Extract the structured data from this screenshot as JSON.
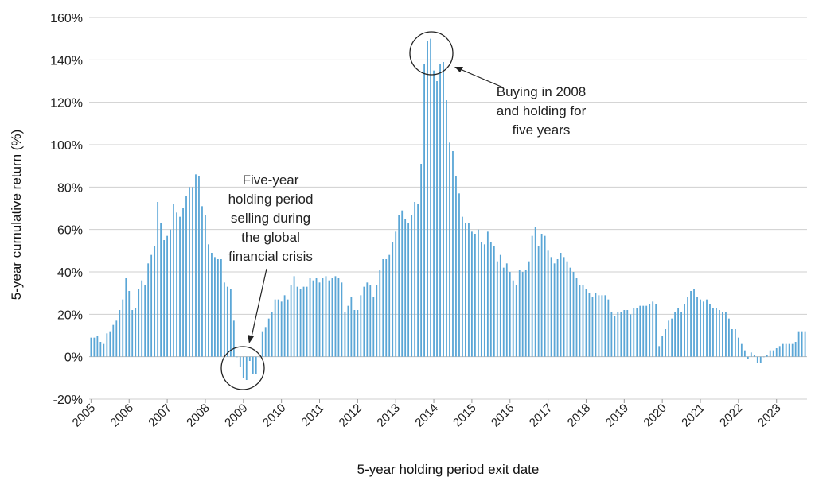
{
  "chart_data": {
    "type": "bar",
    "xlabel": "5-year holding period exit date",
    "ylabel": "5-year cumulative return (%)",
    "ylim": [
      -20,
      160
    ],
    "y_ticks": [
      "160%",
      "140%",
      "120%",
      "100%",
      "80%",
      "60%",
      "40%",
      "20%",
      "0%",
      "-20%"
    ],
    "y_tick_values": [
      160,
      140,
      120,
      100,
      80,
      60,
      40,
      20,
      0,
      -20
    ],
    "x_ticks": [
      "2005",
      "2006",
      "2007",
      "2008",
      "2009",
      "2010",
      "2011",
      "2012",
      "2013",
      "2014",
      "2015",
      "2016",
      "2017",
      "2018",
      "2019",
      "2020",
      "2021",
      "2022",
      "2023"
    ],
    "x_range": [
      2004.95,
      2023.8
    ],
    "grid": true,
    "series": [
      {
        "x": [
          2005.0,
          2005.083,
          2005.167,
          2005.25,
          2005.333,
          2005.417,
          2005.5,
          2005.583,
          2005.667,
          2005.75,
          2005.833,
          2005.917,
          2006.0,
          2006.083,
          2006.167,
          2006.25,
          2006.333,
          2006.417,
          2006.5,
          2006.583,
          2006.667,
          2006.75,
          2006.833,
          2006.917,
          2007.0,
          2007.083,
          2007.167,
          2007.25,
          2007.333,
          2007.417,
          2007.5,
          2007.583,
          2007.667,
          2007.75,
          2007.833,
          2007.917,
          2008.0,
          2008.083,
          2008.167,
          2008.25,
          2008.333,
          2008.417,
          2008.5,
          2008.583,
          2008.667,
          2008.75,
          2008.833,
          2008.917,
          2009.0,
          2009.083,
          2009.167,
          2009.25,
          2009.333,
          2009.417,
          2009.5,
          2009.583,
          2009.667,
          2009.75,
          2009.833,
          2009.917,
          2010.0,
          2010.083,
          2010.167,
          2010.25,
          2010.333,
          2010.417,
          2010.5,
          2010.583,
          2010.667,
          2010.75,
          2010.833,
          2010.917,
          2011.0,
          2011.083,
          2011.167,
          2011.25,
          2011.333,
          2011.417,
          2011.5,
          2011.583,
          2011.667,
          2011.75,
          2011.833,
          2011.917,
          2012.0,
          2012.083,
          2012.167,
          2012.25,
          2012.333,
          2012.417,
          2012.5,
          2012.583,
          2012.667,
          2012.75,
          2012.833,
          2012.917,
          2013.0,
          2013.083,
          2013.167,
          2013.25,
          2013.333,
          2013.417,
          2013.5,
          2013.583,
          2013.667,
          2013.75,
          2013.833,
          2013.917,
          2014.0,
          2014.083,
          2014.167,
          2014.25,
          2014.333,
          2014.417,
          2014.5,
          2014.583,
          2014.667,
          2014.75,
          2014.833,
          2014.917,
          2015.0,
          2015.083,
          2015.167,
          2015.25,
          2015.333,
          2015.417,
          2015.5,
          2015.583,
          2015.667,
          2015.75,
          2015.833,
          2015.917,
          2016.0,
          2016.083,
          2016.167,
          2016.25,
          2016.333,
          2016.417,
          2016.5,
          2016.583,
          2016.667,
          2016.75,
          2016.833,
          2016.917,
          2017.0,
          2017.083,
          2017.167,
          2017.25,
          2017.333,
          2017.417,
          2017.5,
          2017.583,
          2017.667,
          2017.75,
          2017.833,
          2017.917,
          2018.0,
          2018.083,
          2018.167,
          2018.25,
          2018.333,
          2018.417,
          2018.5,
          2018.583,
          2018.667,
          2018.75,
          2018.833,
          2018.917,
          2019.0,
          2019.083,
          2019.167,
          2019.25,
          2019.333,
          2019.417,
          2019.5,
          2019.583,
          2019.667,
          2019.75,
          2019.833,
          2019.917,
          2020.0,
          2020.083,
          2020.167,
          2020.25,
          2020.333,
          2020.417,
          2020.5,
          2020.583,
          2020.667,
          2020.75,
          2020.833,
          2020.917,
          2021.0,
          2021.083,
          2021.167,
          2021.25,
          2021.333,
          2021.417,
          2021.5,
          2021.583,
          2021.667,
          2021.75,
          2021.833,
          2021.917,
          2022.0,
          2022.083,
          2022.167,
          2022.25,
          2022.333,
          2022.417,
          2022.5,
          2022.583,
          2022.667,
          2022.75,
          2022.833,
          2022.917,
          2023.0,
          2023.083,
          2023.167,
          2023.25,
          2023.333,
          2023.417,
          2023.5,
          2023.583,
          2023.667,
          2023.75
        ],
        "values": [
          9,
          9,
          10,
          7,
          6,
          11,
          12,
          15,
          17,
          22,
          27,
          37,
          31,
          22,
          23,
          32,
          36,
          34,
          44,
          48,
          52,
          73,
          63,
          55,
          57,
          60,
          72,
          68,
          66,
          70,
          76,
          80,
          80,
          86,
          85,
          71,
          67,
          53,
          49,
          47,
          46,
          46,
          35,
          33,
          32,
          17,
          0,
          -5,
          -10,
          -11,
          -2,
          -8,
          -8,
          0,
          12,
          14,
          18,
          21,
          27,
          27,
          26,
          29,
          27,
          34,
          38,
          33,
          32,
          33,
          33,
          37,
          36,
          37,
          35,
          37,
          38,
          36,
          37,
          38,
          37,
          35,
          21,
          24,
          28,
          22,
          22,
          29,
          33,
          35,
          34,
          28,
          34,
          41,
          46,
          46,
          48,
          54,
          59,
          67,
          69,
          65,
          63,
          67,
          73,
          72,
          91,
          138,
          149,
          150,
          135,
          130,
          138,
          139,
          121,
          101,
          97,
          85,
          77,
          66,
          63,
          63,
          59,
          58,
          60,
          54,
          53,
          59,
          54,
          52,
          45,
          48,
          42,
          44,
          40,
          36,
          34,
          41,
          40,
          41,
          45,
          57,
          61,
          52,
          58,
          57,
          50,
          47,
          44,
          46,
          49,
          47,
          45,
          42,
          40,
          37,
          34,
          34,
          32,
          30,
          28,
          30,
          29,
          29,
          29,
          27,
          21,
          19,
          21,
          21,
          22,
          22,
          20,
          23,
          23,
          24,
          24,
          24,
          25,
          26,
          25,
          5,
          10,
          13,
          17,
          18,
          21,
          23,
          21,
          25,
          28,
          31,
          32,
          28,
          27,
          26,
          27,
          25,
          23,
          23,
          22,
          21,
          21,
          18,
          13,
          13,
          9,
          6,
          3,
          -1,
          2,
          1,
          -3,
          -3,
          0,
          1,
          3,
          3,
          4,
          5,
          6,
          6,
          6,
          6,
          7,
          12,
          12,
          12
        ]
      }
    ],
    "annotations": [
      {
        "lines": [
          "Five-year",
          "holding period",
          "selling during",
          "the global",
          "financial crisis"
        ]
      },
      {
        "lines": [
          "Buying in 2008",
          "and holding for",
          "five years"
        ]
      }
    ]
  }
}
